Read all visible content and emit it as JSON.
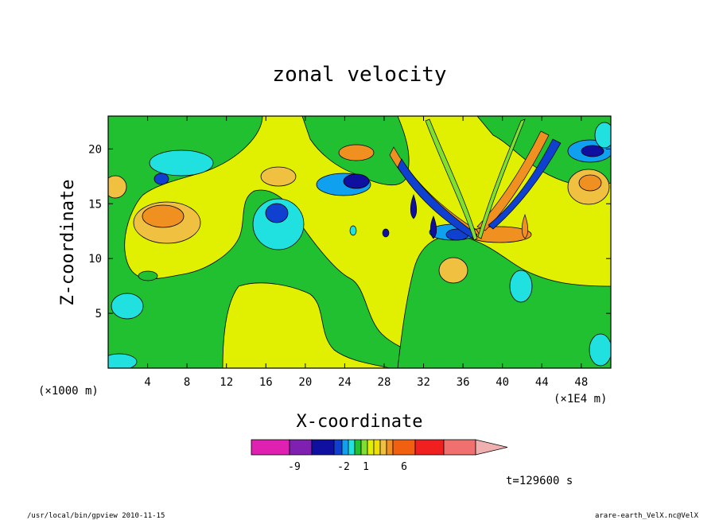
{
  "chart_data": {
    "type": "heatmap",
    "title": "zonal velocity",
    "xlabel": "X-coordinate",
    "ylabel": "Z-coordinate",
    "x_units_left": "(×1000 m)",
    "x_units_right": "(×1E4 m)",
    "xlim": [
      0,
      51
    ],
    "ylim": [
      0,
      23
    ],
    "xticks": [
      "4",
      "8",
      "12",
      "16",
      "20",
      "24",
      "28",
      "32",
      "36",
      "40",
      "44",
      "48"
    ],
    "xtick_values": [
      4,
      8,
      12,
      16,
      20,
      24,
      28,
      32,
      36,
      40,
      44,
      48
    ],
    "yticks": [
      "5",
      "10",
      "15",
      "20"
    ],
    "ytick_values": [
      5,
      10,
      15,
      20
    ],
    "colorbar": {
      "colors": [
        "#e020b0",
        "#8020b0",
        "#1010a0",
        "#1040d0",
        "#10a0f0",
        "#20e0e0",
        "#20c030",
        "#80e030",
        "#e0f000",
        "#f0e000",
        "#f0c040",
        "#f09020",
        "#f06010",
        "#f02020",
        "#f07070",
        "#f0b0b0"
      ],
      "tick_labels": [
        "-9",
        "-2",
        "1",
        "6"
      ]
    },
    "features": [
      {
        "x": 17,
        "z": 13.8,
        "value": "negative"
      },
      {
        "x": 25,
        "z": 17,
        "value": "negative"
      },
      {
        "x": 48,
        "z": 19.5,
        "value": "negative"
      },
      {
        "x": 36,
        "z": 12,
        "value": "negative"
      },
      {
        "x": 39.5,
        "z": 12,
        "value": "positive"
      },
      {
        "x": 24,
        "z": 19.5,
        "value": "positive"
      },
      {
        "x": 48.5,
        "z": 17,
        "value": "positive"
      },
      {
        "x": 6,
        "z": 13.5,
        "value": "positive"
      }
    ]
  },
  "annotations": {
    "time": "t=129600 s",
    "footer_left": "/usr/local/bin/gpview   2010-11-15",
    "footer_right": "arare-earth_VelX.nc@VelX"
  }
}
